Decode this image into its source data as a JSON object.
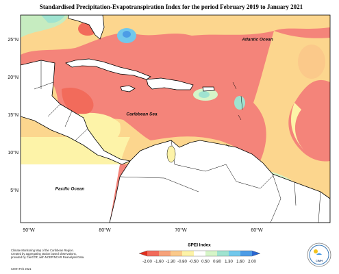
{
  "title": "Standardised Precipitation-Evapotranspiration Index for the period February 2019 to January 2021",
  "map": {
    "labels": {
      "atlantic": "Atlantic Ocean",
      "caribbean": "Caribbean Sea",
      "pacific": "Pacific Ocean"
    },
    "lat_ticks": [
      "25°N",
      "20°N",
      "15°N",
      "10°N",
      "5°N"
    ],
    "lon_ticks": [
      "90°W",
      "80°W",
      "70°W",
      "60°W"
    ]
  },
  "legend": {
    "title": "SPEI Index",
    "ticks": [
      "-2.00",
      "-1.60",
      "-1.30",
      "-0.80",
      "-0.50",
      "0.50",
      "0.80",
      "1.30",
      "1.60",
      "2.00"
    ]
  },
  "credits": {
    "lines": [
      "Climate Monitoring Map of the Caribbean Region.",
      "Created by aggregating station based observations,",
      "provided by CariCOF, with NCEP/NCAR Reanalysis Data."
    ],
    "date": "CIMH Feb 2021"
  },
  "logo": {
    "text": "CIMH"
  }
}
